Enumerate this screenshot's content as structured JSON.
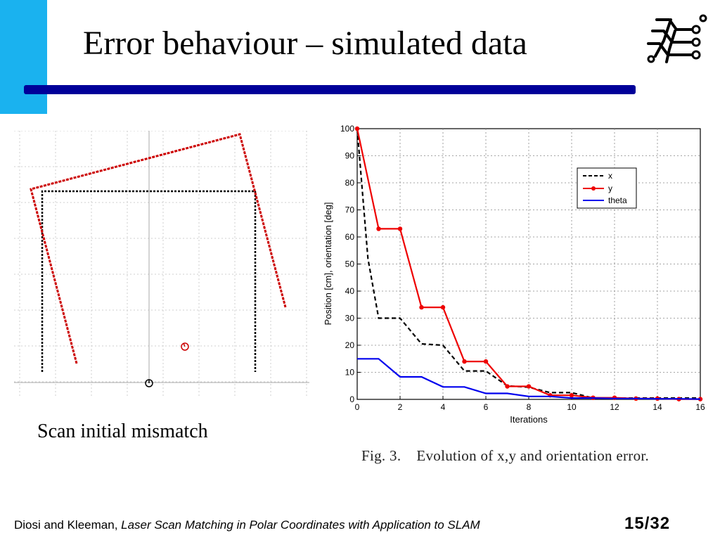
{
  "slide": {
    "title": "Error behaviour – simulated data",
    "accent_color": "#1ab2ef",
    "rule_color": "#000099",
    "logo_icon": "circuit-figure-logo-icon"
  },
  "left_figure": {
    "caption": "Scan initial mismatch",
    "reference_scan_color": "#000000",
    "current_scan_color": "#cc0000"
  },
  "chart_data": {
    "type": "line",
    "xlabel": "Iterations",
    "ylabel": "Position [cm], orientation [deg]",
    "xlim": [
      0,
      16
    ],
    "ylim": [
      0,
      100
    ],
    "xticks": [
      0,
      2,
      4,
      6,
      8,
      10,
      12,
      14,
      16
    ],
    "yticks": [
      0,
      10,
      20,
      30,
      40,
      50,
      60,
      70,
      80,
      90,
      100
    ],
    "grid": true,
    "legend_position": "top-right",
    "series": [
      {
        "name": "x",
        "color": "#000000",
        "style": "dashed",
        "x": [
          0,
          0.5,
          1,
          2,
          3,
          4,
          5,
          6,
          7,
          8,
          9,
          10,
          11,
          12,
          13,
          14,
          15,
          16
        ],
        "y": [
          100,
          52,
          30,
          30,
          20.5,
          20,
          10.5,
          10.5,
          5,
          4.5,
          2.5,
          2.5,
          0.5,
          0.5,
          0.5,
          0.5,
          0.5,
          0.5
        ]
      },
      {
        "name": "y",
        "color": "#ee0000",
        "style": "solid-markers",
        "x": [
          0,
          1,
          2,
          3,
          4,
          5,
          6,
          7,
          8,
          9,
          10,
          11,
          12,
          13,
          14,
          15,
          16
        ],
        "y": [
          100,
          63,
          63,
          34,
          34,
          14,
          14,
          4.8,
          4.8,
          1.5,
          1.5,
          0.6,
          0.6,
          0.3,
          0.3,
          0.1,
          0.1
        ]
      },
      {
        "name": "theta",
        "color": "#0000ee",
        "style": "solid",
        "x": [
          0,
          1,
          2,
          3,
          4,
          5,
          6,
          7,
          8,
          9,
          10,
          11,
          12,
          13,
          14,
          15,
          16
        ],
        "y": [
          15,
          15,
          8.3,
          8.3,
          4.6,
          4.6,
          2.2,
          2.2,
          1.1,
          1.1,
          0.5,
          0.5,
          0.3,
          0.3,
          0.2,
          0.2,
          0.1
        ]
      }
    ],
    "caption_number": "Fig. 3.",
    "caption_text": "Evolution of x,y and orientation error."
  },
  "footer": {
    "authors": "Diosi and Kleeman, ",
    "paper_title": "Laser Scan Matching in Polar Coordinates with Application to SLAM",
    "page": "15/32"
  }
}
